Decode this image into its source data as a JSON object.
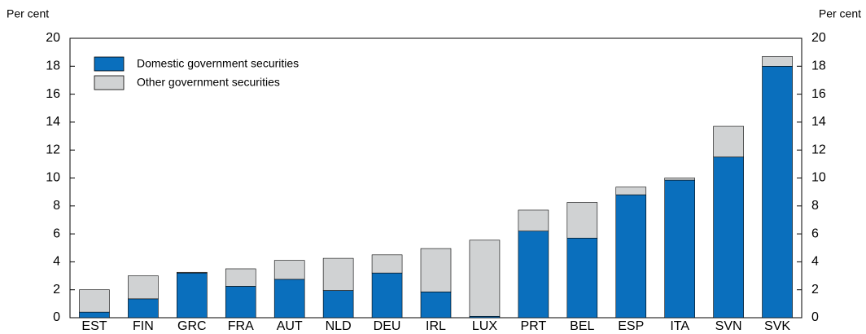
{
  "chart_data": {
    "type": "stacked_bar",
    "y_label": "Per cent",
    "y2_label": "Per cent",
    "categories": [
      "EST",
      "FIN",
      "GRC",
      "FRA",
      "AUT",
      "NLD",
      "DEU",
      "IRL",
      "LUX",
      "PRT",
      "BEL",
      "ESP",
      "ITA",
      "SVN",
      "SVK"
    ],
    "series": [
      {
        "name": "Domestic government securities",
        "color": "#0a6fbd",
        "values": [
          0.4,
          1.35,
          3.2,
          2.25,
          2.75,
          1.95,
          3.2,
          1.85,
          0.1,
          6.2,
          5.7,
          8.8,
          9.85,
          11.5,
          18.0
        ]
      },
      {
        "name": "Other government securities",
        "color": "#d0d2d3",
        "values": [
          1.6,
          1.65,
          0.05,
          1.25,
          1.35,
          2.3,
          1.3,
          3.1,
          5.45,
          1.5,
          2.55,
          0.55,
          0.15,
          2.2,
          0.7
        ]
      }
    ],
    "ylim": [
      0,
      20
    ],
    "yticks": [
      0,
      2,
      4,
      6,
      8,
      10,
      12,
      14,
      16,
      18,
      20
    ],
    "y2lim": [
      0,
      20
    ],
    "y2ticks": [
      0,
      2,
      4,
      6,
      8,
      10,
      12,
      14,
      16,
      18,
      20
    ],
    "legend": "top-left",
    "grid": false
  }
}
